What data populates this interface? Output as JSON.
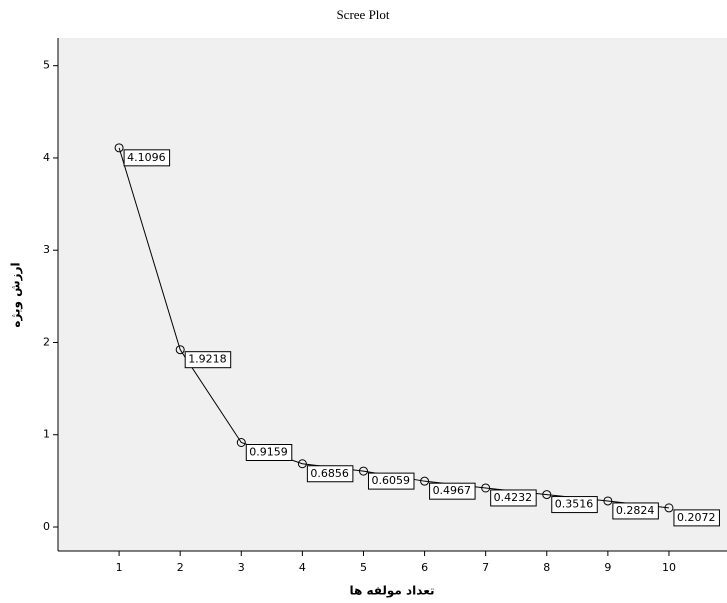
{
  "chart_data": {
    "type": "line",
    "title": "Scree Plot",
    "x_label": "تعداد مولفه ها",
    "y_label": "ارزش ویژه",
    "x": [
      1,
      2,
      3,
      4,
      5,
      6,
      7,
      8,
      9,
      10
    ],
    "values": [
      4.1096,
      1.9218,
      0.9159,
      0.6856,
      0.6059,
      0.4967,
      0.4232,
      0.3516,
      0.2824,
      0.2072
    ],
    "color": "#000000",
    "xlim": [
      0,
      10.95
    ],
    "xticks": [
      1,
      2,
      3,
      4,
      5,
      6,
      7,
      8,
      9,
      10
    ],
    "ylim": [
      -0.26,
      5.3
    ],
    "yticks": [
      0,
      1,
      2,
      3,
      4,
      5
    ],
    "grid": false
  }
}
